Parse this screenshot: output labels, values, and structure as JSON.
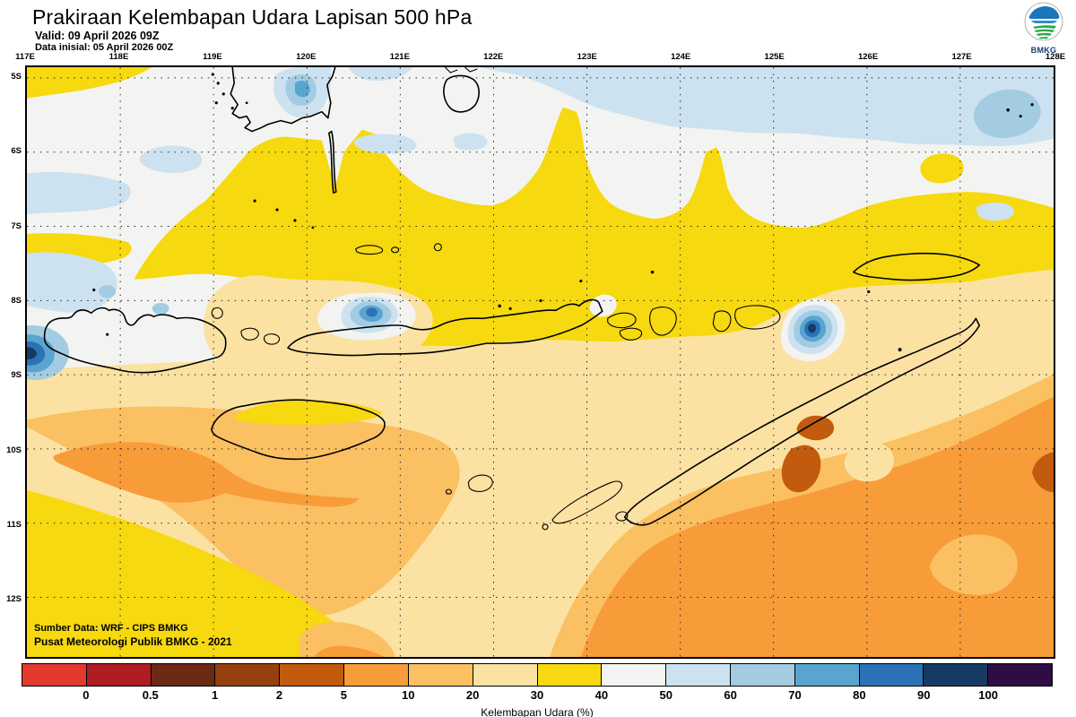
{
  "header": {
    "title": "Prakiraan Kelembapan Udara Lapisan 500 hPa",
    "valid_label": "Valid: 09 April 2026 09Z",
    "init_label": "Data inisial: 05 April 2026 00Z",
    "logo_text": "BMKG"
  },
  "map": {
    "source_line1": "Sumber Data: WRF - CIPS BMKG",
    "source_line2": "Pusat Meteorologi Publik BMKG - 2021",
    "lon_ticks": [
      "117E",
      "118E",
      "119E",
      "120E",
      "121E",
      "122E",
      "123E",
      "124E",
      "125E",
      "126E",
      "127E",
      "128E"
    ],
    "lat_ticks": [
      "5S",
      "6S",
      "7S",
      "8S",
      "9S",
      "10S",
      "11S",
      "12S"
    ]
  },
  "palette": {
    "c_lt0": "#E23B2E",
    "c_0_05": "#AE1C24",
    "c_05_1": "#6B2A13",
    "c_1_2": "#96400F",
    "c_2_5": "#C25B0E",
    "c_5_10": "#F89C3A",
    "c_10_20": "#FBC062",
    "c_20_30": "#FBE2A2",
    "c_30_40": "#F6D90F",
    "c_40_50": "#F3F4F1",
    "c_50_60": "#CDE2F0",
    "c_60_70": "#A3CCE3",
    "c_70_80": "#58A5CF",
    "c_80_90": "#2B72B6",
    "c_90_100": "#163A63",
    "c_gt100": "#2E0D45"
  },
  "colorbar": {
    "caption": "Kelembapan Udara (%)",
    "tick_labels": [
      "0",
      "0.5",
      "1",
      "2",
      "5",
      "10",
      "20",
      "30",
      "40",
      "50",
      "60",
      "70",
      "80",
      "90",
      "100"
    ],
    "segments": [
      {
        "range": "<0",
        "color_key": "c_lt0"
      },
      {
        "range": "0-0.5",
        "color_key": "c_0_05"
      },
      {
        "range": "0.5-1",
        "color_key": "c_05_1"
      },
      {
        "range": "1-2",
        "color_key": "c_1_2"
      },
      {
        "range": "2-5",
        "color_key": "c_2_5"
      },
      {
        "range": "5-10",
        "color_key": "c_5_10"
      },
      {
        "range": "10-20",
        "color_key": "c_10_20"
      },
      {
        "range": "20-30",
        "color_key": "c_20_30"
      },
      {
        "range": "30-40",
        "color_key": "c_30_40"
      },
      {
        "range": "40-50",
        "color_key": "c_40_50"
      },
      {
        "range": "50-60",
        "color_key": "c_50_60"
      },
      {
        "range": "60-70",
        "color_key": "c_60_70"
      },
      {
        "range": "70-80",
        "color_key": "c_70_80"
      },
      {
        "range": "80-90",
        "color_key": "c_80_90"
      },
      {
        "range": "90-100",
        "color_key": "c_90_100"
      },
      {
        "range": ">100",
        "color_key": "c_gt100"
      }
    ]
  },
  "chart_data": {
    "type": "heatmap",
    "title": "Prakiraan Kelembapan Udara Lapisan 500 hPa",
    "valid_time": "09 April 2026 09Z",
    "initial_time": "05 April 2026 00Z",
    "variable": "Kelembapan Udara (%)",
    "level": "500 hPa",
    "x_range_lon_deg_east": [
      117,
      128
    ],
    "y_range_lat_deg_south": [
      5,
      12.8
    ],
    "grid": "1-degree dotted graticule",
    "legend_position": "bottom",
    "contour_levels_percent": [
      0,
      0.5,
      1,
      2,
      5,
      10,
      20,
      30,
      40,
      50,
      60,
      70,
      80,
      90,
      100
    ],
    "field_summary": [
      {
        "region": "northern band 5S-6.5S",
        "value_percent": "40-60, local maxima 70-80 near 120E 5.2S and 60-70 near 127E 5.8S"
      },
      {
        "region": "central band 6S-9S",
        "value_percent": "30-40 (yellow) dominant"
      },
      {
        "region": "north coast of Flores ~120.6E 8.3S",
        "value_percent": "local maximum 80-90"
      },
      {
        "region": "near Alor/Wetar ~125.4E 8.5S",
        "value_percent": "local maximum 90-100"
      },
      {
        "region": "west edge ~117E 8.8S",
        "value_percent": "local maximum 90-100"
      },
      {
        "region": "southwest sea 117-121E 9.5-11S",
        "value_percent": "5-20"
      },
      {
        "region": "southeast sea south of Timor",
        "value_percent": "5-10 with pockets of 2-5 near 125.3E 10.5S"
      },
      {
        "region": "bottom-left corner 117-120E 11.5-12.8S",
        "value_percent": "30-40"
      }
    ]
  }
}
